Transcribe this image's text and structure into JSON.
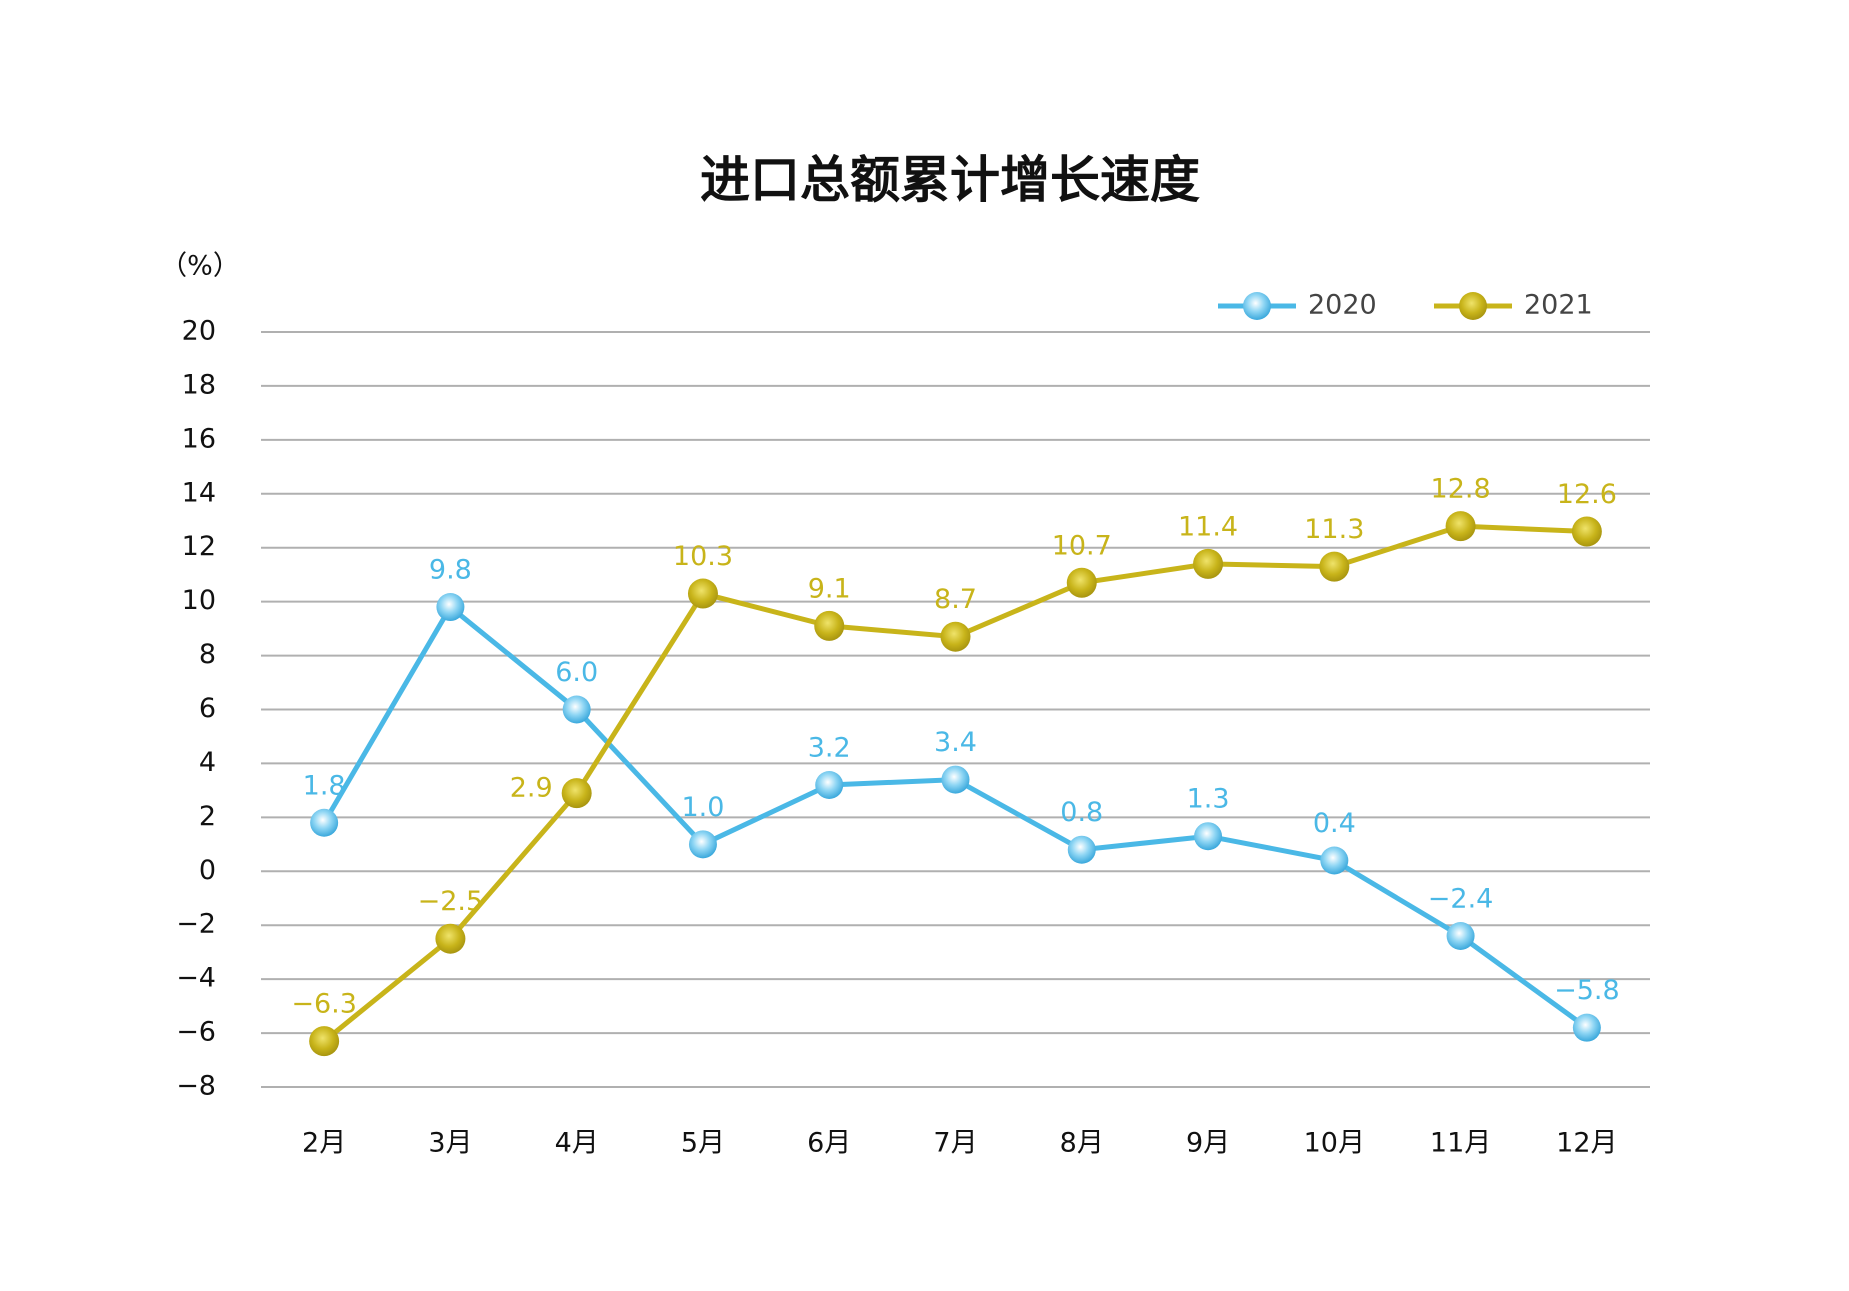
{
  "chart_data": {
    "type": "line",
    "title": "进口总额累计增长速度",
    "y_label": "（%）",
    "categories": [
      "2月",
      "3月",
      "4月",
      "5月",
      "6月",
      "7月",
      "8月",
      "9月",
      "10月",
      "11月",
      "12月"
    ],
    "series": [
      {
        "name": "2020",
        "color": "#4ab8e6",
        "values": [
          1.8,
          9.8,
          6.0,
          1.0,
          3.2,
          3.4,
          0.8,
          1.3,
          0.4,
          -2.4,
          -5.8
        ],
        "value_labels": [
          "1.8",
          "9.8",
          "6.0",
          "1.0",
          "3.2",
          "3.4",
          "0.8",
          "1.3",
          "0.4",
          "−2.4",
          "−5.8"
        ]
      },
      {
        "name": "2021",
        "color": "#c8b41a",
        "values": [
          -6.3,
          -2.5,
          2.9,
          10.3,
          9.1,
          8.7,
          10.7,
          11.4,
          11.3,
          12.8,
          12.6
        ],
        "value_labels": [
          "−6.3",
          "−2.5",
          "2.9",
          "10.3",
          "9.1",
          "8.7",
          "10.7",
          "11.4",
          "11.3",
          "12.8",
          "12.6"
        ]
      }
    ],
    "ylim": [
      -8,
      20
    ],
    "yticks": [
      {
        "value": -8,
        "label": "−8"
      },
      {
        "value": -6,
        "label": "−6"
      },
      {
        "value": -4,
        "label": "−4"
      },
      {
        "value": -2,
        "label": "−2"
      },
      0,
      2,
      4,
      6,
      8,
      10,
      12,
      14,
      16,
      18,
      20
    ],
    "grid": true,
    "legend": "top-right"
  }
}
